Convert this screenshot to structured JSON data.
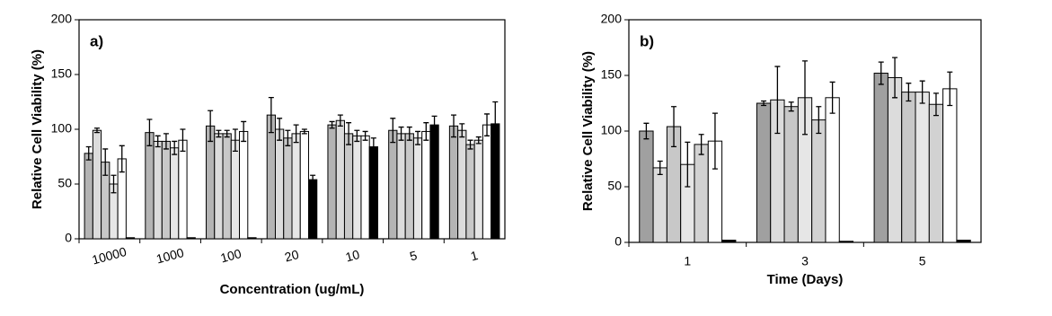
{
  "chart_data": [
    {
      "type": "bar",
      "panel_label": "a)",
      "y_label": "Relative Cell Viability (%)",
      "x_label": "Concentration (ug/mL)",
      "categories": [
        "10000",
        "1000",
        "100",
        "20",
        "10",
        "5",
        "1"
      ],
      "ylim": [
        0,
        200
      ],
      "yticks": [
        0,
        50,
        100,
        150,
        200
      ],
      "series": [
        {
          "color": "#b4b4b4",
          "values": [
            78,
            97,
            103,
            113,
            104,
            99,
            103
          ],
          "errors": [
            6,
            12,
            14,
            16,
            3,
            11,
            10
          ]
        },
        {
          "color": "#dcdcdc",
          "values": [
            99,
            89,
            96,
            100,
            108,
            96,
            99
          ],
          "errors": [
            2,
            5,
            3,
            10,
            5,
            6,
            6
          ]
        },
        {
          "color": "#c8c8c8",
          "values": [
            70,
            89,
            96,
            92,
            96,
            96,
            86
          ],
          "errors": [
            12,
            7,
            3,
            7,
            10,
            6,
            4
          ]
        },
        {
          "color": "#e6e6e6",
          "values": [
            50,
            83,
            90,
            96,
            94,
            92,
            90
          ],
          "errors": [
            8,
            6,
            10,
            8,
            5,
            6,
            3
          ]
        },
        {
          "color": "#ffffff",
          "values": [
            73,
            90,
            98,
            98,
            94,
            98,
            104
          ],
          "errors": [
            12,
            10,
            9,
            2,
            4,
            8,
            10
          ]
        },
        {
          "color": "#000000",
          "values": [
            1,
            1,
            1,
            54,
            84,
            104,
            105
          ],
          "errors": [
            0,
            0,
            0,
            4,
            8,
            8,
            20
          ]
        }
      ]
    },
    {
      "type": "bar",
      "panel_label": "b)",
      "y_label": "Relative Cell Viability (%)",
      "x_label": "Time (Days)",
      "categories": [
        "1",
        "3",
        "5"
      ],
      "ylim": [
        0,
        200
      ],
      "yticks": [
        0,
        50,
        100,
        150,
        200
      ],
      "series": [
        {
          "color": "#a0a0a0",
          "values": [
            100,
            125,
            152
          ],
          "errors": [
            7,
            2,
            10
          ]
        },
        {
          "color": "#dcdcdc",
          "values": [
            67,
            128,
            148
          ],
          "errors": [
            6,
            30,
            18
          ]
        },
        {
          "color": "#c8c8c8",
          "values": [
            104,
            122,
            135
          ],
          "errors": [
            18,
            4,
            8
          ]
        },
        {
          "color": "#e6e6e6",
          "values": [
            70,
            130,
            135
          ],
          "errors": [
            20,
            33,
            10
          ]
        },
        {
          "color": "#d2d2d2",
          "values": [
            88,
            110,
            124
          ],
          "errors": [
            9,
            12,
            10
          ]
        },
        {
          "color": "#ffffff",
          "values": [
            91,
            130,
            138
          ],
          "errors": [
            25,
            14,
            15
          ]
        },
        {
          "color": "#000000",
          "values": [
            2,
            1,
            2
          ],
          "errors": [
            0,
            0,
            0
          ]
        }
      ]
    }
  ]
}
